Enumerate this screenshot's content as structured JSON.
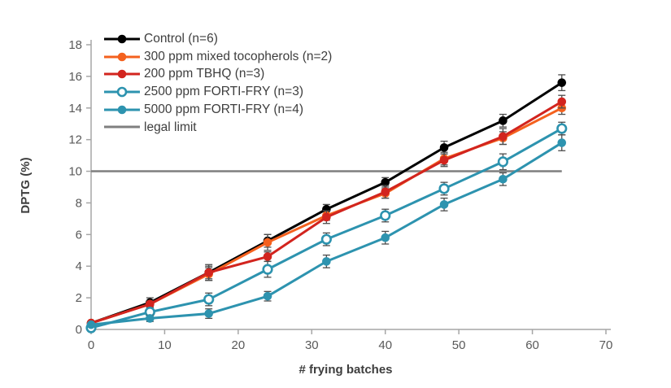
{
  "chart_data": {
    "type": "line",
    "title": "",
    "xlabel": "# frying batches",
    "ylabel": "DPTG (%)",
    "xlim": [
      0,
      70
    ],
    "ylim": [
      0,
      18
    ],
    "x_ticks": [
      0,
      10,
      20,
      30,
      40,
      50,
      60,
      70
    ],
    "y_ticks": [
      0,
      2,
      4,
      6,
      8,
      10,
      12,
      14,
      16,
      18
    ],
    "grid": false,
    "legend_position": "top-left-inside",
    "x": [
      0,
      8,
      16,
      24,
      32,
      40,
      48,
      56,
      64
    ],
    "series": [
      {
        "name": "Control (n=6)",
        "color": "#000000",
        "marker": "filled",
        "values": [
          0.4,
          1.7,
          3.6,
          5.6,
          7.6,
          9.3,
          11.5,
          13.2,
          15.6
        ],
        "errors": [
          0.1,
          0.3,
          0.5,
          0.4,
          0.3,
          0.3,
          0.4,
          0.4,
          0.5
        ]
      },
      {
        "name": "300 ppm mixed tocopherols (n=2)",
        "color": "#F4611E",
        "marker": "filled",
        "values": [
          0.4,
          1.6,
          3.5,
          5.5,
          7.2,
          8.6,
          10.8,
          12.1,
          14.0
        ],
        "errors": [
          0.1,
          0.2,
          0.4,
          0.5,
          0.3,
          0.3,
          0.4,
          0.4,
          0.4
        ]
      },
      {
        "name": "200 ppm TBHQ (n=3)",
        "color": "#D2241E",
        "marker": "filled",
        "values": [
          0.4,
          1.6,
          3.6,
          4.6,
          7.1,
          8.7,
          10.7,
          12.2,
          14.4
        ],
        "errors": [
          0.1,
          0.2,
          0.4,
          0.3,
          0.4,
          0.4,
          0.4,
          0.5,
          0.4
        ]
      },
      {
        "name": "2500 ppm FORTI-FRY (n=3)",
        "color": "#2D93AF",
        "marker": "open",
        "values": [
          0.1,
          1.1,
          1.9,
          3.8,
          5.7,
          7.2,
          8.9,
          10.6,
          12.7
        ],
        "errors": [
          0.1,
          0.2,
          0.4,
          0.5,
          0.4,
          0.4,
          0.4,
          0.5,
          0.4
        ]
      },
      {
        "name": "5000 ppm FORTI-FRY (n=4)",
        "color": "#2D93AF",
        "marker": "filled",
        "values": [
          0.3,
          0.7,
          1.0,
          2.1,
          4.3,
          5.8,
          7.9,
          9.5,
          11.8
        ],
        "errors": [
          0.1,
          0.2,
          0.3,
          0.3,
          0.4,
          0.4,
          0.4,
          0.4,
          0.5
        ]
      }
    ],
    "reference_line": {
      "name": "legal limit",
      "value": 10,
      "color": "#7F7F7F",
      "x_extent": [
        0,
        64
      ]
    }
  },
  "axes": {
    "axis_color": "#A6A6A6",
    "tick_label_color": "#595959",
    "axis_title_color": "#3E3E3E"
  },
  "error_bar_color": "#4D4D4D",
  "background_color": "#FFFFFF"
}
